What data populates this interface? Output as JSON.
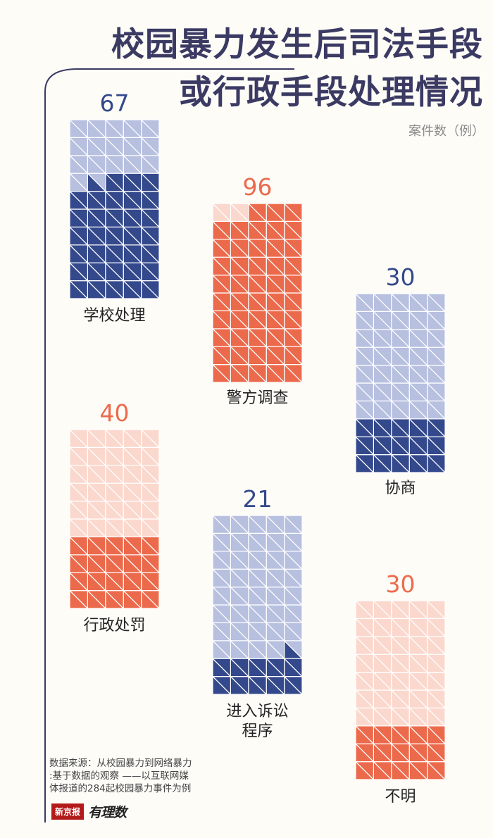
{
  "title": {
    "line1": "校园暴力发生后司法手段",
    "line2": "或行政手段处理情况"
  },
  "unit_label": "案件数（例）",
  "source": {
    "line1": "数据来源：从校园暴力到网络暴力",
    "line2": ":基于数据的观察 ——以互联网媒",
    "line3": "体报道的284起校园暴力事件为例"
  },
  "logo": {
    "box_text": "新京报",
    "script_text": "有理数"
  },
  "colors": {
    "navy": "#34498c",
    "navy_light": "#b8c0e0",
    "orange": "#ec6a4c",
    "orange_light": "#fbd8cd",
    "title": "#3b3a63",
    "frame_line": "#3b3a63"
  },
  "chart_data": {
    "type": "waffle",
    "unit": "案件数（例）",
    "total_cases": 284,
    "grid": {
      "columns": 5,
      "rows": 10,
      "cells": 50,
      "half_cells": 100,
      "max_value": 100
    },
    "items": [
      {
        "label": "学校处理",
        "value": 67,
        "color": "navy"
      },
      {
        "label": "警方调查",
        "value": 96,
        "color": "orange"
      },
      {
        "label": "协商",
        "value": 30,
        "color": "navy"
      },
      {
        "label": "行政处罚",
        "value": 40,
        "color": "orange"
      },
      {
        "label": "进入诉讼程序",
        "value": 21,
        "color": "navy"
      },
      {
        "label": "不明",
        "value": 30,
        "color": "orange"
      }
    ]
  }
}
